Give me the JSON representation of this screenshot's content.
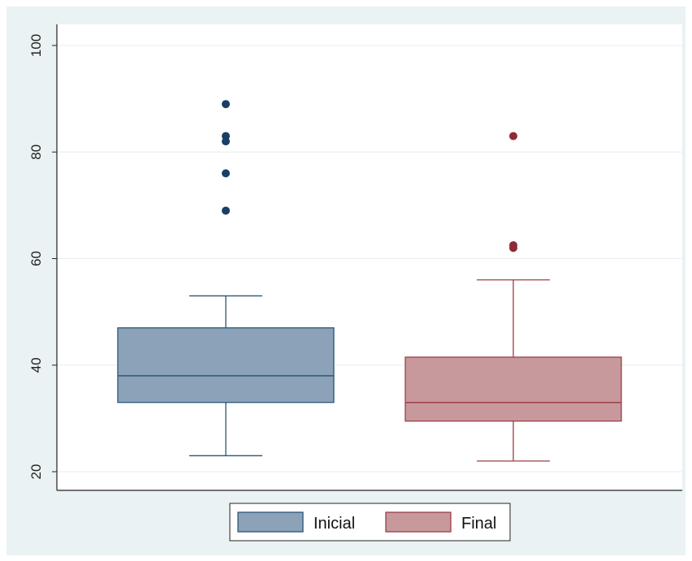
{
  "chart_data": {
    "type": "box",
    "title": "",
    "xlabel": "",
    "ylabel": "",
    "ylim": [
      20,
      100
    ],
    "yticks": [
      20,
      40,
      60,
      80,
      100
    ],
    "grid": true,
    "legend_position": "bottom",
    "series": [
      {
        "name": "Inicial",
        "color": "#8ba2b8",
        "stroke": "#2c5577",
        "outlier_color": "#1a3f66",
        "whisker_low": 23,
        "q1": 33,
        "median": 38,
        "q3": 47,
        "whisker_high": 53,
        "outliers": [
          69,
          76,
          82,
          83,
          89
        ]
      },
      {
        "name": "Final",
        "color": "#c7999c",
        "stroke": "#9c3f48",
        "outlier_color": "#8e2b36",
        "whisker_low": 22,
        "q1": 29.5,
        "median": 33,
        "q3": 41.5,
        "whisker_high": 56,
        "outliers": [
          62,
          62.5,
          83
        ]
      }
    ]
  }
}
